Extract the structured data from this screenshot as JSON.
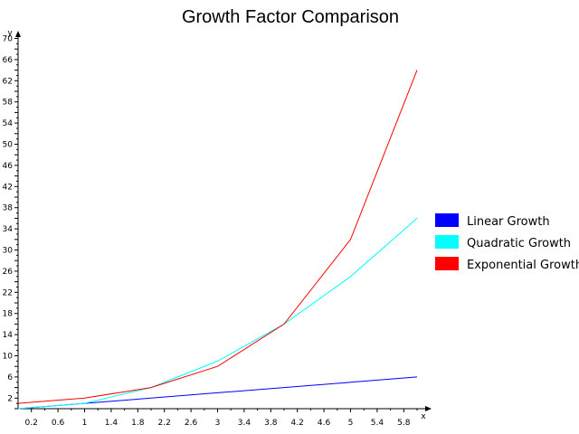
{
  "chart_data": {
    "type": "line",
    "title": "Growth Factor Comparison",
    "xlabel": "x",
    "ylabel": "y",
    "xlim": [
      0,
      6.2
    ],
    "ylim": [
      0,
      71
    ],
    "x_ticks": [
      "0.2",
      "0.6",
      "1",
      "1.4",
      "1.8",
      "2.2",
      "2.6",
      "3",
      "3.4",
      "3.8",
      "4.2",
      "4.6",
      "5",
      "5.4",
      "5.8"
    ],
    "y_ticks": [
      "2",
      "6",
      "10",
      "14",
      "18",
      "22",
      "26",
      "30",
      "34",
      "38",
      "42",
      "46",
      "50",
      "54",
      "58",
      "62",
      "66",
      "70"
    ],
    "x": [
      0,
      1,
      2,
      3,
      4,
      5,
      6
    ],
    "series": [
      {
        "name": "Linear Growth",
        "color": "#0000ff",
        "values": [
          0,
          1,
          2,
          3,
          4,
          5,
          6
        ]
      },
      {
        "name": "Quadratic Growth",
        "color": "#00ffff",
        "values": [
          0,
          1,
          4,
          9,
          16,
          25,
          36
        ]
      },
      {
        "name": "Exponential Growth",
        "color": "#ff0000",
        "values": [
          1,
          2,
          4,
          8,
          16,
          32,
          64
        ]
      }
    ],
    "grid": false,
    "legend": "right"
  }
}
